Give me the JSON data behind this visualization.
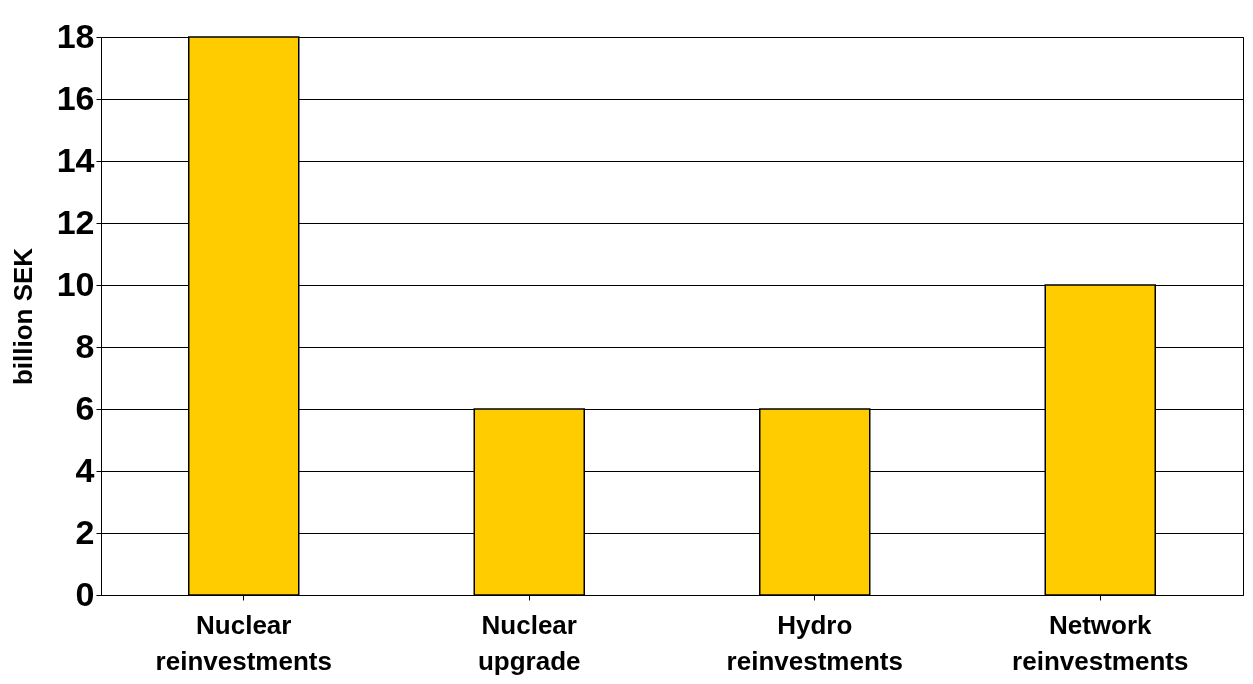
{
  "chart_data": {
    "type": "bar",
    "ylabel": "billion SEK",
    "categories": [
      "Nuclear reinvestments",
      "Nuclear upgrade",
      "Hydro reinvestments",
      "Network reinvestments"
    ],
    "values": [
      18,
      6,
      6,
      10
    ],
    "color": "#ffcc00",
    "ylim": [
      0,
      18
    ],
    "yticks": [
      0,
      2,
      4,
      6,
      8,
      10,
      12,
      14,
      16,
      18
    ],
    "grid": "y"
  }
}
